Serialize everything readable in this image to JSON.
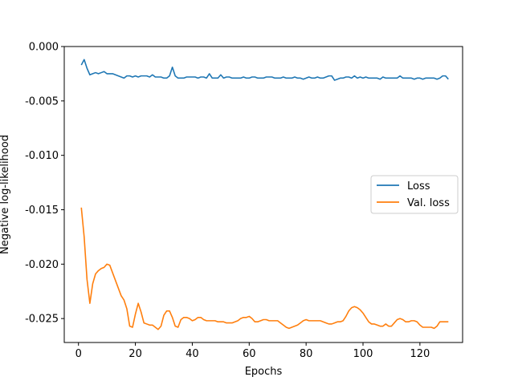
{
  "chart_data": {
    "type": "line",
    "xlabel": "Epochs",
    "ylabel": "Negative log-likelihood",
    "xlim": [
      -5,
      135
    ],
    "ylim": [
      -0.0272,
      0.0
    ],
    "xticks": [
      0,
      20,
      40,
      60,
      80,
      100,
      120
    ],
    "yticks": [
      0.0,
      -0.005,
      -0.01,
      -0.015,
      -0.02,
      -0.025
    ],
    "ytick_labels": [
      "0.000",
      "-0.005",
      "-0.010",
      "-0.015",
      "-0.020",
      "-0.025"
    ],
    "grid": false,
    "legend": {
      "placement": "center-right"
    },
    "series": [
      {
        "name": "Loss",
        "color": "#1f77b4",
        "x": [
          1,
          2,
          3,
          4,
          5,
          6,
          7,
          8,
          9,
          10,
          11,
          12,
          13,
          14,
          15,
          16,
          17,
          18,
          19,
          20,
          21,
          22,
          23,
          24,
          25,
          26,
          27,
          28,
          29,
          30,
          31,
          32,
          33,
          34,
          35,
          36,
          37,
          38,
          39,
          40,
          41,
          42,
          43,
          44,
          45,
          46,
          47,
          48,
          49,
          50,
          51,
          52,
          53,
          54,
          55,
          56,
          57,
          58,
          59,
          60,
          61,
          62,
          63,
          64,
          65,
          66,
          67,
          68,
          69,
          70,
          71,
          72,
          73,
          74,
          75,
          76,
          77,
          78,
          79,
          80,
          81,
          82,
          83,
          84,
          85,
          86,
          87,
          88,
          89,
          90,
          91,
          92,
          93,
          94,
          95,
          96,
          97,
          98,
          99,
          100,
          101,
          102,
          103,
          104,
          105,
          106,
          107,
          108,
          109,
          110,
          111,
          112,
          113,
          114,
          115,
          116,
          117,
          118,
          119,
          120,
          121,
          122,
          123,
          124,
          125,
          126,
          127,
          128,
          129,
          130
        ],
        "y": [
          -0.0017,
          -0.0012,
          -0.002,
          -0.0026,
          -0.0025,
          -0.0024,
          -0.0025,
          -0.0024,
          -0.0023,
          -0.0025,
          -0.0025,
          -0.0025,
          -0.0026,
          -0.0027,
          -0.0028,
          -0.0029,
          -0.0027,
          -0.0027,
          -0.0028,
          -0.0027,
          -0.0028,
          -0.0027,
          -0.0027,
          -0.0027,
          -0.0028,
          -0.0026,
          -0.0028,
          -0.0028,
          -0.0028,
          -0.0029,
          -0.0029,
          -0.0027,
          -0.0019,
          -0.0027,
          -0.0029,
          -0.0029,
          -0.0029,
          -0.0028,
          -0.0028,
          -0.0028,
          -0.0028,
          -0.0029,
          -0.0028,
          -0.0028,
          -0.0029,
          -0.0025,
          -0.0029,
          -0.0029,
          -0.0029,
          -0.0026,
          -0.0029,
          -0.0028,
          -0.0028,
          -0.0029,
          -0.0029,
          -0.0029,
          -0.0029,
          -0.0028,
          -0.0029,
          -0.0029,
          -0.0028,
          -0.0028,
          -0.0029,
          -0.0029,
          -0.0029,
          -0.0028,
          -0.0028,
          -0.0028,
          -0.0029,
          -0.0029,
          -0.0029,
          -0.0028,
          -0.0029,
          -0.0029,
          -0.0029,
          -0.0028,
          -0.0029,
          -0.0029,
          -0.003,
          -0.0029,
          -0.0028,
          -0.0029,
          -0.0029,
          -0.0028,
          -0.0029,
          -0.0029,
          -0.0028,
          -0.0027,
          -0.0027,
          -0.0031,
          -0.003,
          -0.0029,
          -0.0029,
          -0.0028,
          -0.0028,
          -0.0029,
          -0.0027,
          -0.0029,
          -0.0028,
          -0.0029,
          -0.0028,
          -0.0029,
          -0.0029,
          -0.0029,
          -0.0029,
          -0.003,
          -0.0028,
          -0.0029,
          -0.0029,
          -0.0029,
          -0.0029,
          -0.0029,
          -0.0027,
          -0.0029,
          -0.0029,
          -0.0029,
          -0.0029,
          -0.003,
          -0.0029,
          -0.0029,
          -0.003,
          -0.0029,
          -0.0029,
          -0.0029,
          -0.0029,
          -0.003,
          -0.0029,
          -0.0027,
          -0.0027,
          -0.003
        ]
      },
      {
        "name": "Val. loss",
        "color": "#ff7f0e",
        "x": [
          1,
          2,
          3,
          4,
          5,
          6,
          7,
          8,
          9,
          10,
          11,
          12,
          13,
          14,
          15,
          16,
          17,
          18,
          19,
          20,
          21,
          22,
          23,
          24,
          25,
          26,
          27,
          28,
          29,
          30,
          31,
          32,
          33,
          34,
          35,
          36,
          37,
          38,
          39,
          40,
          41,
          42,
          43,
          44,
          45,
          46,
          47,
          48,
          49,
          50,
          51,
          52,
          53,
          54,
          55,
          56,
          57,
          58,
          59,
          60,
          61,
          62,
          63,
          64,
          65,
          66,
          67,
          68,
          69,
          70,
          71,
          72,
          73,
          74,
          75,
          76,
          77,
          78,
          79,
          80,
          81,
          82,
          83,
          84,
          85,
          86,
          87,
          88,
          89,
          90,
          91,
          92,
          93,
          94,
          95,
          96,
          97,
          98,
          99,
          100,
          101,
          102,
          103,
          104,
          105,
          106,
          107,
          108,
          109,
          110,
          111,
          112,
          113,
          114,
          115,
          116,
          117,
          118,
          119,
          120,
          121,
          122,
          123,
          124,
          125,
          126,
          127,
          128,
          129,
          130
        ],
        "y": [
          -0.0148,
          -0.0175,
          -0.0214,
          -0.0236,
          -0.0218,
          -0.0209,
          -0.0206,
          -0.0204,
          -0.0203,
          -0.02,
          -0.0201,
          -0.0208,
          -0.0215,
          -0.0222,
          -0.0229,
          -0.0233,
          -0.0241,
          -0.0257,
          -0.0258,
          -0.0246,
          -0.0236,
          -0.0244,
          -0.0254,
          -0.0255,
          -0.0256,
          -0.0256,
          -0.0258,
          -0.026,
          -0.0257,
          -0.0247,
          -0.0243,
          -0.0243,
          -0.0249,
          -0.0257,
          -0.0258,
          -0.0251,
          -0.0249,
          -0.0249,
          -0.025,
          -0.0252,
          -0.0251,
          -0.0249,
          -0.0249,
          -0.0251,
          -0.0252,
          -0.0252,
          -0.0252,
          -0.0252,
          -0.0253,
          -0.0253,
          -0.0253,
          -0.0254,
          -0.0254,
          -0.0254,
          -0.0253,
          -0.0252,
          -0.025,
          -0.0249,
          -0.0249,
          -0.0248,
          -0.025,
          -0.0253,
          -0.0253,
          -0.0252,
          -0.0251,
          -0.0251,
          -0.0252,
          -0.0252,
          -0.0252,
          -0.0252,
          -0.0254,
          -0.0256,
          -0.0258,
          -0.0259,
          -0.0258,
          -0.0257,
          -0.0256,
          -0.0254,
          -0.0252,
          -0.0251,
          -0.0252,
          -0.0252,
          -0.0252,
          -0.0252,
          -0.0252,
          -0.0253,
          -0.0254,
          -0.0255,
          -0.0255,
          -0.0254,
          -0.0253,
          -0.0253,
          -0.0252,
          -0.0248,
          -0.0243,
          -0.024,
          -0.0239,
          -0.024,
          -0.0242,
          -0.0245,
          -0.0249,
          -0.0253,
          -0.0255,
          -0.0255,
          -0.0256,
          -0.0257,
          -0.0257,
          -0.0255,
          -0.0257,
          -0.0257,
          -0.0254,
          -0.0251,
          -0.025,
          -0.0251,
          -0.0253,
          -0.0253,
          -0.0252,
          -0.0252,
          -0.0253,
          -0.0256,
          -0.0258,
          -0.0258,
          -0.0258,
          -0.0258,
          -0.0259,
          -0.0257,
          -0.0253,
          -0.0253,
          -0.0253,
          -0.0253
        ]
      }
    ]
  }
}
